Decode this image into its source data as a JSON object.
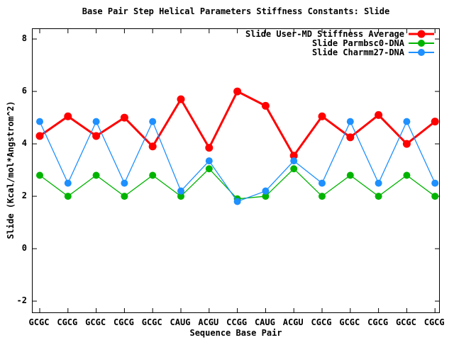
{
  "chart_data": {
    "type": "line",
    "title": "Base Pair Step Helical Parameters Stiffness Constants: Slide",
    "xlabel": "Sequence Base Pair",
    "ylabel": "Slide (Kcal/mol*Angstrom^2)",
    "ylim": [
      -2.43,
      8.38
    ],
    "yticks": [
      8,
      6,
      4,
      2,
      0,
      -2
    ],
    "grid": false,
    "legend_position": "top-right-inside",
    "background_color": "#ffffff",
    "axis_color": "#000000",
    "categories": [
      "GCGC",
      "CGCG",
      "GCGC",
      "CGCG",
      "GCGC",
      "CAUG",
      "ACGU",
      "CCGG",
      "CAUG",
      "ACGU",
      "CGCG",
      "GCGC",
      "CGCG",
      "GCGC",
      "CGCG"
    ],
    "series": [
      {
        "name": "Slide User-MD Stiffness Average",
        "color": "#ff0000",
        "values": [
          4.3,
          5.05,
          4.3,
          5.0,
          3.9,
          5.7,
          3.85,
          6.0,
          5.45,
          3.55,
          5.05,
          4.25,
          5.1,
          4.0,
          4.85
        ]
      },
      {
        "name": "Slide Parmbsc0-DNA",
        "color": "#00b400",
        "values": [
          2.8,
          2.0,
          2.8,
          2.0,
          2.8,
          2.0,
          3.05,
          1.9,
          2.0,
          3.05,
          2.0,
          2.8,
          2.0,
          2.8,
          2.0
        ]
      },
      {
        "name": "Slide Charmm27-DNA",
        "color": "#1e90ff",
        "values": [
          4.85,
          2.5,
          4.85,
          2.5,
          4.85,
          2.2,
          3.35,
          1.8,
          2.2,
          3.35,
          2.5,
          4.85,
          2.5,
          4.85,
          2.5
        ]
      }
    ]
  }
}
